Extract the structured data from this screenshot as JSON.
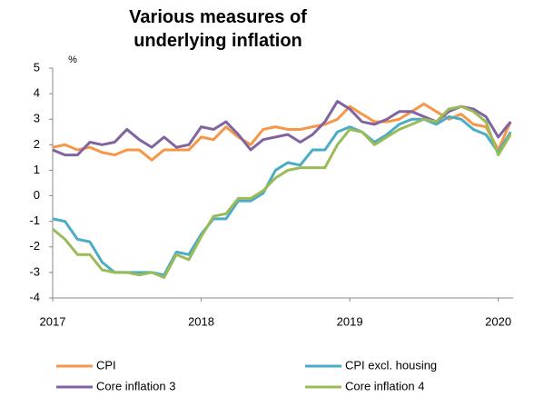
{
  "chart_data": {
    "type": "line",
    "title": "Various measures of underlying inflation",
    "y_label": "%",
    "x": [
      2017,
      2017.083,
      2017.167,
      2017.25,
      2017.333,
      2017.417,
      2017.5,
      2017.583,
      2017.667,
      2017.75,
      2017.833,
      2017.917,
      2018,
      2018.083,
      2018.167,
      2018.25,
      2018.333,
      2018.417,
      2018.5,
      2018.583,
      2018.667,
      2018.75,
      2018.833,
      2018.917,
      2019,
      2019.083,
      2019.167,
      2019.25,
      2019.333,
      2019.417,
      2019.5,
      2019.583,
      2019.667,
      2019.75,
      2019.833,
      2019.917,
      2020,
      2020.083
    ],
    "series": [
      {
        "name": "CPI",
        "color": "#f79646",
        "values": [
          1.9,
          2.0,
          1.8,
          1.9,
          1.7,
          1.6,
          1.8,
          1.8,
          1.4,
          1.8,
          1.8,
          1.8,
          2.3,
          2.2,
          2.7,
          2.3,
          2.0,
          2.6,
          2.7,
          2.6,
          2.6,
          2.7,
          2.8,
          3.0,
          3.5,
          3.2,
          2.9,
          2.9,
          3.0,
          3.3,
          3.6,
          3.3,
          3.0,
          3.2,
          2.8,
          2.7,
          1.8,
          2.9
        ]
      },
      {
        "name": "CPI excl. housing",
        "color": "#4bacc6",
        "values": [
          -0.9,
          -1.0,
          -1.7,
          -1.8,
          -2.6,
          -3.0,
          -3.0,
          -3.0,
          -3.0,
          -3.1,
          -2.2,
          -2.3,
          -1.5,
          -0.9,
          -0.9,
          -0.2,
          -0.2,
          0.1,
          1.0,
          1.3,
          1.2,
          1.8,
          1.8,
          2.5,
          2.7,
          2.5,
          2.1,
          2.4,
          2.8,
          3.0,
          3.0,
          2.8,
          3.1,
          3.0,
          2.6,
          2.4,
          1.7,
          2.5
        ]
      },
      {
        "name": "Core inflation 3",
        "color": "#8064a2",
        "values": [
          1.8,
          1.6,
          1.6,
          2.1,
          2.0,
          2.1,
          2.6,
          2.2,
          1.9,
          2.3,
          1.9,
          2.0,
          2.7,
          2.6,
          2.9,
          2.4,
          1.8,
          2.2,
          2.3,
          2.4,
          2.1,
          2.4,
          2.9,
          3.7,
          3.4,
          2.9,
          2.8,
          3.0,
          3.3,
          3.3,
          3.1,
          2.9,
          3.3,
          3.5,
          3.4,
          3.1,
          2.3,
          2.9
        ]
      },
      {
        "name": "Core inflation 4",
        "color": "#9bbb59",
        "values": [
          -1.3,
          -1.7,
          -2.3,
          -2.3,
          -2.9,
          -3.0,
          -3.0,
          -3.1,
          -3.0,
          -3.2,
          -2.3,
          -2.5,
          -1.6,
          -0.8,
          -0.7,
          -0.1,
          -0.1,
          0.2,
          0.7,
          1.0,
          1.1,
          1.1,
          1.1,
          2.0,
          2.6,
          2.5,
          2.0,
          2.3,
          2.6,
          2.8,
          3.0,
          2.9,
          3.4,
          3.5,
          3.3,
          2.9,
          1.6,
          2.4
        ]
      }
    ],
    "xlim": [
      2017,
      2020.1
    ],
    "xticks": [
      2017,
      2018,
      2019,
      2020
    ],
    "ylim": [
      -4,
      5
    ],
    "yticks": [
      -4,
      -3,
      -2,
      -1,
      0,
      1,
      2,
      3,
      4,
      5
    ],
    "grid": false,
    "legend": "bottom"
  }
}
